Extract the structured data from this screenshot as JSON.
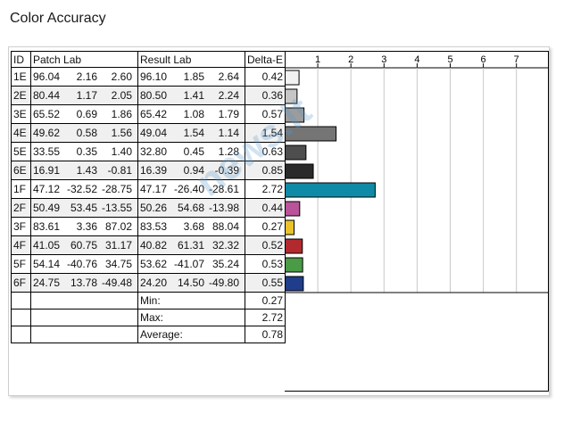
{
  "title": "Color Accuracy",
  "watermark": "news.lt",
  "headers": {
    "id": "ID",
    "patch": "Patch Lab",
    "result": "Result Lab",
    "delta": "Delta-E"
  },
  "rows": [
    {
      "id": "1E",
      "patch": [
        "96.04",
        "2.16",
        "2.60"
      ],
      "result": [
        "96.10",
        "1.85",
        "2.64"
      ],
      "delta": "0.42",
      "color": "#f2f2f2"
    },
    {
      "id": "2E",
      "patch": [
        "80.44",
        "1.17",
        "2.05"
      ],
      "result": [
        "80.50",
        "1.41",
        "2.24"
      ],
      "delta": "0.36",
      "color": "#c6c6c6"
    },
    {
      "id": "3E",
      "patch": [
        "65.52",
        "0.69",
        "1.86"
      ],
      "result": [
        "65.42",
        "1.08",
        "1.79"
      ],
      "delta": "0.57",
      "color": "#9c9c9c"
    },
    {
      "id": "4E",
      "patch": [
        "49.62",
        "0.58",
        "1.56"
      ],
      "result": [
        "49.04",
        "1.54",
        "1.14"
      ],
      "delta": "1.54",
      "color": "#757575"
    },
    {
      "id": "5E",
      "patch": [
        "33.55",
        "0.35",
        "1.40"
      ],
      "result": [
        "32.80",
        "0.45",
        "1.28"
      ],
      "delta": "0.63",
      "color": "#4e4e4e"
    },
    {
      "id": "6E",
      "patch": [
        "16.91",
        "1.43",
        "-0.81"
      ],
      "result": [
        "16.39",
        "0.94",
        "-0.39"
      ],
      "delta": "0.85",
      "color": "#2a2a2a"
    },
    {
      "id": "1F",
      "patch": [
        "47.12",
        "-32.52",
        "-28.75"
      ],
      "result": [
        "47.17",
        "-26.40",
        "-28.61"
      ],
      "delta": "2.72",
      "color": "#0f8aa6"
    },
    {
      "id": "2F",
      "patch": [
        "50.49",
        "53.45",
        "-13.55"
      ],
      "result": [
        "50.26",
        "54.68",
        "-13.98"
      ],
      "delta": "0.44",
      "color": "#b9549a"
    },
    {
      "id": "3F",
      "patch": [
        "83.61",
        "3.36",
        "87.02"
      ],
      "result": [
        "83.53",
        "3.68",
        "88.04"
      ],
      "delta": "0.27",
      "color": "#e9c22c"
    },
    {
      "id": "4F",
      "patch": [
        "41.05",
        "60.75",
        "31.17"
      ],
      "result": [
        "40.82",
        "61.31",
        "32.32"
      ],
      "delta": "0.52",
      "color": "#b22a2e"
    },
    {
      "id": "5F",
      "patch": [
        "54.14",
        "-40.76",
        "34.75"
      ],
      "result": [
        "53.62",
        "-41.07",
        "35.24"
      ],
      "delta": "0.53",
      "color": "#4a9a46"
    },
    {
      "id": "6F",
      "patch": [
        "24.75",
        "13.78",
        "-49.48"
      ],
      "result": [
        "24.20",
        "14.50",
        "-49.80"
      ],
      "delta": "0.55",
      "color": "#1f3d8a"
    }
  ],
  "summary": [
    {
      "label": "Min:",
      "value": "0.27"
    },
    {
      "label": "Max:",
      "value": "2.72"
    },
    {
      "label": "Average:",
      "value": "0.78"
    }
  ],
  "chart_data": {
    "type": "bar",
    "orientation": "horizontal",
    "title": "Color Accuracy",
    "categories": [
      "1E",
      "2E",
      "3E",
      "4E",
      "5E",
      "6E",
      "1F",
      "2F",
      "3F",
      "4F",
      "5F",
      "6F"
    ],
    "values": [
      0.42,
      0.36,
      0.57,
      1.54,
      0.63,
      0.85,
      2.72,
      0.44,
      0.27,
      0.52,
      0.53,
      0.55
    ],
    "ticks": [
      "1",
      "2",
      "3",
      "4",
      "5",
      "6",
      "7"
    ],
    "xlim": [
      0,
      7.8
    ],
    "grid": true,
    "legend": "none"
  }
}
